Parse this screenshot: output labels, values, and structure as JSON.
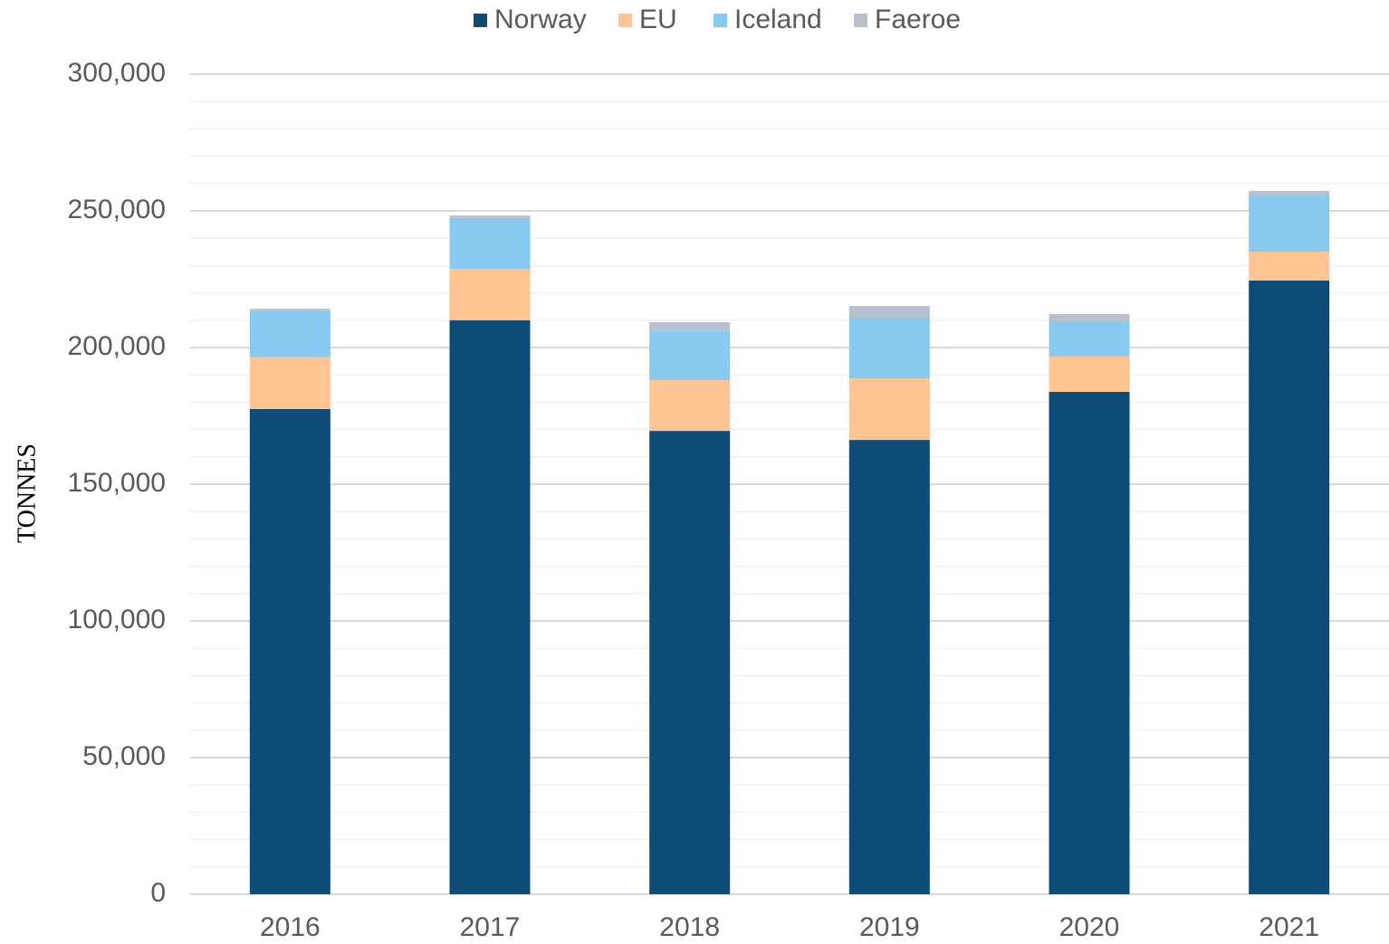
{
  "chart_data": {
    "type": "stacked_bar",
    "y_label": "TONNES",
    "categories": [
      "2016",
      "2017",
      "2018",
      "2019",
      "2020",
      "2021"
    ],
    "series": [
      {
        "name": "Norway",
        "color": "#0d4c76",
        "values": [
          177500,
          210000,
          169500,
          166200,
          183800,
          224500
        ]
      },
      {
        "name": "EU",
        "color": "#ffc491",
        "values": [
          19000,
          18800,
          18600,
          22500,
          12900,
          10600
        ]
      },
      {
        "name": "Iceland",
        "color": "#88caef",
        "values": [
          17000,
          18600,
          17900,
          22200,
          12900,
          20500
        ]
      },
      {
        "name": "Faeroe",
        "color": "#b7c0cd",
        "values": [
          700,
          900,
          3300,
          4300,
          2700,
          1700
        ]
      }
    ],
    "ylim": [
      0,
      300000
    ],
    "yticks": [
      0,
      {
        "value": 50000,
        "label": "50,000"
      },
      {
        "value": 100000,
        "label": "100,000"
      },
      {
        "value": 150000,
        "label": "150,000"
      },
      {
        "value": 200000,
        "label": "200,000"
      },
      {
        "value": 250000,
        "label": "250,000"
      },
      {
        "value": 300000,
        "label": "300,000"
      }
    ],
    "yminorticks": [
      10000,
      20000,
      30000,
      40000,
      60000,
      70000,
      80000,
      90000,
      110000,
      120000,
      130000,
      140000,
      160000,
      170000,
      180000,
      190000,
      210000,
      220000,
      230000,
      240000,
      260000,
      270000,
      280000,
      290000
    ],
    "grid": true,
    "legend": "top"
  }
}
